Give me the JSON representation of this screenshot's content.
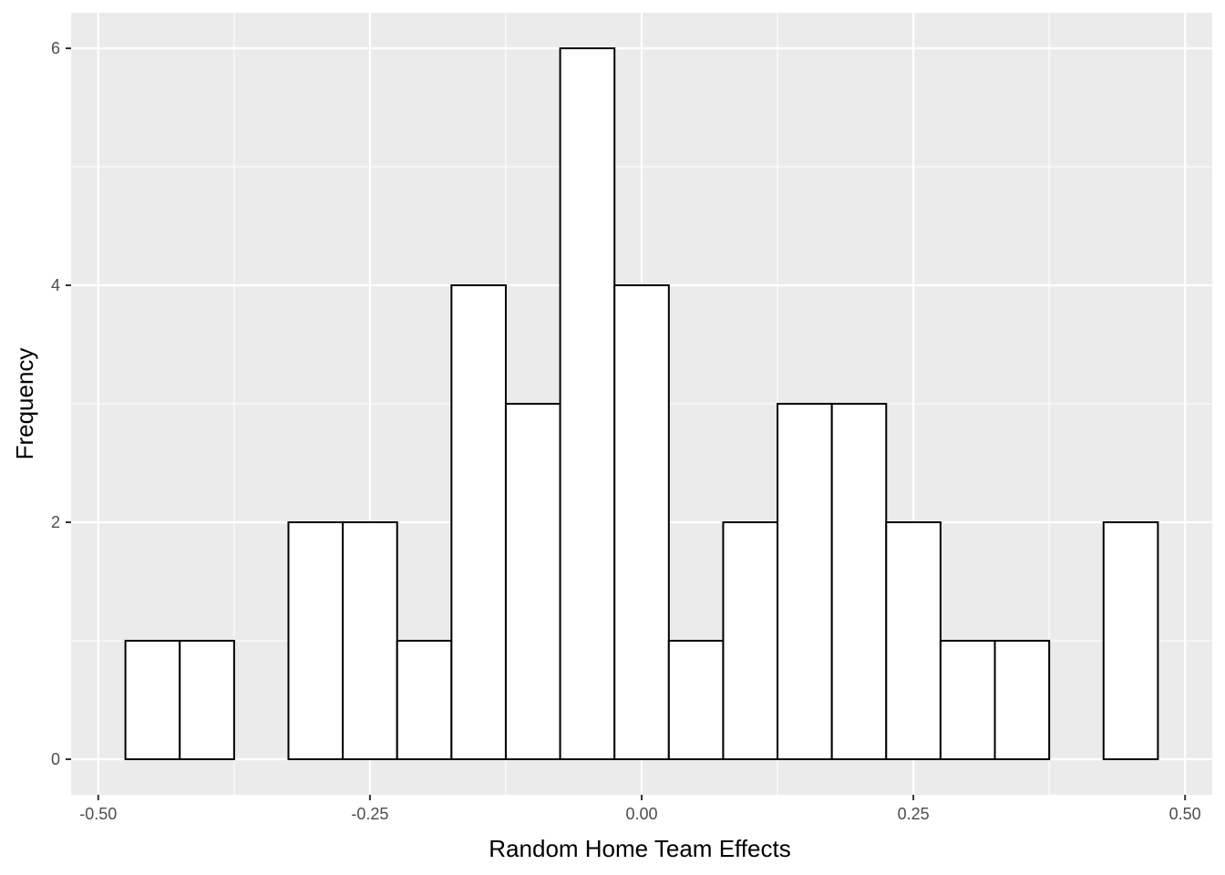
{
  "chart_data": {
    "type": "bar",
    "subtype": "histogram",
    "xlabel": "Random Home Team Effects",
    "ylabel": "Frequency",
    "xlim": [
      -0.525,
      0.525
    ],
    "ylim": [
      -0.3,
      6.3
    ],
    "x_ticks": [
      {
        "value": -0.5,
        "label": "-0.50"
      },
      {
        "value": -0.25,
        "label": "-0.25"
      },
      {
        "value": 0.0,
        "label": "0.00"
      },
      {
        "value": 0.25,
        "label": "0.25"
      },
      {
        "value": 0.5,
        "label": "0.50"
      }
    ],
    "y_ticks": [
      {
        "value": 0,
        "label": "0"
      },
      {
        "value": 2,
        "label": "2"
      },
      {
        "value": 4,
        "label": "4"
      },
      {
        "value": 6,
        "label": "6"
      }
    ],
    "bin_width": 0.05,
    "bin_centers": [
      -0.45,
      -0.4,
      -0.35,
      -0.3,
      -0.25,
      -0.2,
      -0.15,
      -0.1,
      -0.05,
      0.0,
      0.05,
      0.1,
      0.15,
      0.2,
      0.25,
      0.3,
      0.35,
      0.4,
      0.45
    ],
    "values": [
      1,
      1,
      0,
      2,
      2,
      1,
      4,
      3,
      6,
      4,
      1,
      2,
      3,
      3,
      2,
      1,
      1,
      0,
      2
    ],
    "grid": true,
    "colors": {
      "panel": "#ebebeb",
      "grid_major": "#ffffff",
      "bar_fill": "#ffffff",
      "bar_stroke": "#000000",
      "tick": "#333333"
    }
  }
}
